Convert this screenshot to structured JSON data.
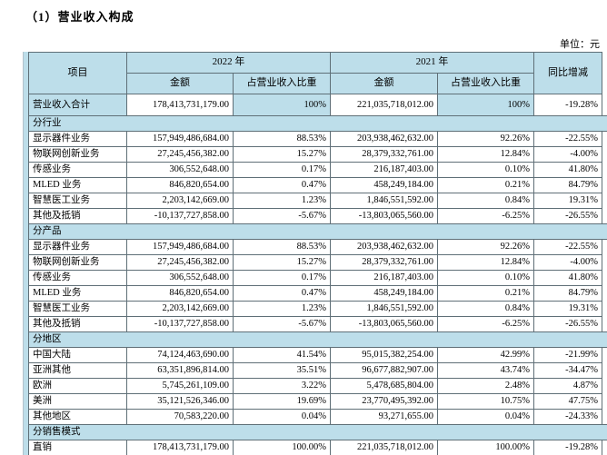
{
  "title": "（1）营业收入构成",
  "unit_label": "单位：元",
  "colors": {
    "highlight_bg": "#bddeea",
    "border": "#5f6f77",
    "text": "#000000"
  },
  "table": {
    "columns": {
      "item": "项目",
      "year_2022": "2022 年",
      "year_2021": "2021 年",
      "amount": "金额",
      "ratio": "占营业收入比重",
      "yoy": "同比增减"
    },
    "rows": [
      {
        "type": "total",
        "label": "营业收入合计",
        "a2022": "178,413,731,179.00",
        "r2022": "100%",
        "a2021": "221,035,718,012.00",
        "r2021": "100%",
        "yoy": "-19.28%"
      },
      {
        "type": "section",
        "label": "分行业"
      },
      {
        "type": "data",
        "label": "显示器件业务",
        "a2022": "157,949,486,684.00",
        "r2022": "88.53%",
        "a2021": "203,938,462,632.00",
        "r2021": "92.26%",
        "yoy": "-22.55%"
      },
      {
        "type": "data",
        "label": "物联网创新业务",
        "a2022": "27,245,456,382.00",
        "r2022": "15.27%",
        "a2021": "28,379,332,761.00",
        "r2021": "12.84%",
        "yoy": "-4.00%"
      },
      {
        "type": "data",
        "label": "传感业务",
        "a2022": "306,552,648.00",
        "r2022": "0.17%",
        "a2021": "216,187,403.00",
        "r2021": "0.10%",
        "yoy": "41.80%"
      },
      {
        "type": "data",
        "label": "MLED 业务",
        "a2022": "846,820,654.00",
        "r2022": "0.47%",
        "a2021": "458,249,184.00",
        "r2021": "0.21%",
        "yoy": "84.79%"
      },
      {
        "type": "data",
        "label": "智慧医工业务",
        "a2022": "2,203,142,669.00",
        "r2022": "1.23%",
        "a2021": "1,846,551,592.00",
        "r2021": "0.84%",
        "yoy": "19.31%"
      },
      {
        "type": "data",
        "label": "其他及抵销",
        "a2022": "-10,137,727,858.00",
        "r2022": "-5.67%",
        "a2021": "-13,803,065,560.00",
        "r2021": "-6.25%",
        "yoy": "-26.55%"
      },
      {
        "type": "section",
        "label": "分产品"
      },
      {
        "type": "data",
        "label": "显示器件业务",
        "a2022": "157,949,486,684.00",
        "r2022": "88.53%",
        "a2021": "203,938,462,632.00",
        "r2021": "92.26%",
        "yoy": "-22.55%"
      },
      {
        "type": "data",
        "label": "物联网创新业务",
        "a2022": "27,245,456,382.00",
        "r2022": "15.27%",
        "a2021": "28,379,332,761.00",
        "r2021": "12.84%",
        "yoy": "-4.00%"
      },
      {
        "type": "data",
        "label": "传感业务",
        "a2022": "306,552,648.00",
        "r2022": "0.17%",
        "a2021": "216,187,403.00",
        "r2021": "0.10%",
        "yoy": "41.80%"
      },
      {
        "type": "data",
        "label": "MLED 业务",
        "a2022": "846,820,654.00",
        "r2022": "0.47%",
        "a2021": "458,249,184.00",
        "r2021": "0.21%",
        "yoy": "84.79%"
      },
      {
        "type": "data",
        "label": "智慧医工业务",
        "a2022": "2,203,142,669.00",
        "r2022": "1.23%",
        "a2021": "1,846,551,592.00",
        "r2021": "0.84%",
        "yoy": "19.31%"
      },
      {
        "type": "data",
        "label": "其他及抵销",
        "a2022": "-10,137,727,858.00",
        "r2022": "-5.67%",
        "a2021": "-13,803,065,560.00",
        "r2021": "-6.25%",
        "yoy": "-26.55%"
      },
      {
        "type": "section",
        "label": "分地区"
      },
      {
        "type": "data",
        "label": "中国大陆",
        "a2022": "74,124,463,690.00",
        "r2022": "41.54%",
        "a2021": "95,015,382,254.00",
        "r2021": "42.99%",
        "yoy": "-21.99%"
      },
      {
        "type": "data",
        "label": "亚洲其他",
        "a2022": "63,351,896,814.00",
        "r2022": "35.51%",
        "a2021": "96,677,882,907.00",
        "r2021": "43.74%",
        "yoy": "-34.47%"
      },
      {
        "type": "data",
        "label": "欧洲",
        "a2022": "5,745,261,109.00",
        "r2022": "3.22%",
        "a2021": "5,478,685,804.00",
        "r2021": "2.48%",
        "yoy": "4.87%"
      },
      {
        "type": "data",
        "label": "美洲",
        "a2022": "35,121,526,346.00",
        "r2022": "19.69%",
        "a2021": "23,770,495,392.00",
        "r2021": "10.75%",
        "yoy": "47.75%"
      },
      {
        "type": "data",
        "label": "其他地区",
        "a2022": "70,583,220.00",
        "r2022": "0.04%",
        "a2021": "93,271,655.00",
        "r2021": "0.04%",
        "yoy": "-24.33%"
      },
      {
        "type": "section",
        "label": "分销售模式"
      },
      {
        "type": "data",
        "label": "直销",
        "a2022": "178,413,731,179.00",
        "r2022": "100.00%",
        "a2021": "221,035,718,012.00",
        "r2021": "100.00%",
        "yoy": "-19.28%"
      }
    ]
  }
}
